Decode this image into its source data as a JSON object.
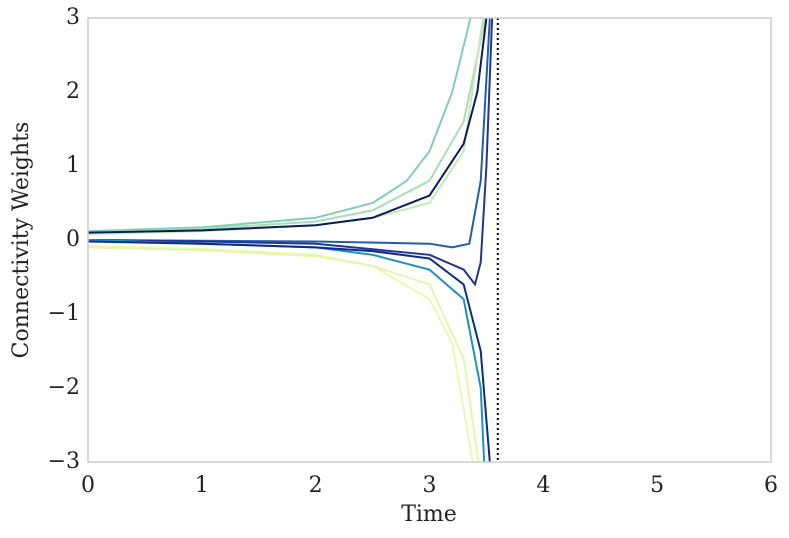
{
  "chart_data": {
    "type": "line",
    "xlabel": "Time",
    "ylabel": "Connectivity Weights",
    "xlim": [
      0,
      6
    ],
    "ylim": [
      -3,
      3
    ],
    "xticks": [
      0,
      1,
      2,
      3,
      4,
      5,
      6
    ],
    "yticks": [
      {
        "value": -3,
        "label": "−3"
      },
      {
        "value": -2,
        "label": "−2"
      },
      {
        "value": -1,
        "label": "−1"
      },
      0,
      1,
      2,
      3
    ],
    "vline": 3.6,
    "grid": false,
    "series": [
      {
        "color": "#7fcdbb",
        "x": [
          0,
          1,
          2,
          2.5,
          2.8,
          3.0,
          3.2,
          3.36
        ],
        "values": [
          0.12,
          0.17,
          0.3,
          0.5,
          0.8,
          1.2,
          2.0,
          3.0
        ]
      },
      {
        "color": "#a8ddb5",
        "x": [
          0,
          1,
          2,
          2.5,
          3.0,
          3.3,
          3.49
        ],
        "values": [
          0.1,
          0.15,
          0.25,
          0.4,
          0.8,
          1.6,
          3.0
        ]
      },
      {
        "color": "#c7e9b4",
        "x": [
          0,
          1,
          2,
          2.5,
          3.0,
          3.3,
          3.47
        ],
        "values": [
          0.08,
          0.12,
          0.2,
          0.3,
          0.5,
          1.2,
          3.0
        ]
      },
      {
        "color": "#081d58",
        "x": [
          0,
          1,
          2,
          2.5,
          3.0,
          3.3,
          3.42,
          3.5
        ],
        "values": [
          0.1,
          0.13,
          0.2,
          0.3,
          0.6,
          1.3,
          2.0,
          3.0
        ]
      },
      {
        "color": "#225ea8",
        "x": [
          0,
          1,
          2,
          3.0,
          3.2,
          3.35,
          3.45,
          3.53
        ],
        "values": [
          0,
          -0.01,
          -0.02,
          -0.05,
          -0.1,
          -0.05,
          0.8,
          3.0
        ]
      },
      {
        "color": "#253494",
        "x": [
          0,
          1,
          2,
          3.0,
          3.3,
          3.4,
          3.45,
          3.5,
          3.55
        ],
        "values": [
          0,
          -0.02,
          -0.05,
          -0.2,
          -0.4,
          -0.6,
          -0.3,
          1.0,
          3.0
        ]
      },
      {
        "color": "#1d91c0",
        "x": [
          0,
          1,
          2,
          2.5,
          3.0,
          3.3,
          3.45,
          3.48
        ],
        "values": [
          0,
          -0.05,
          -0.1,
          -0.2,
          -0.4,
          -0.8,
          -2.0,
          -3.0
        ]
      },
      {
        "color": "#0c2c84",
        "x": [
          0,
          1,
          2,
          2.5,
          3.0,
          3.3,
          3.45,
          3.53
        ],
        "values": [
          -0.02,
          -0.05,
          -0.1,
          -0.15,
          -0.25,
          -0.6,
          -1.5,
          -3.0
        ]
      },
      {
        "color": "#edf8b1",
        "x": [
          0,
          1,
          2,
          2.5,
          3.0,
          3.2,
          3.38
        ],
        "values": [
          -0.08,
          -0.12,
          -0.2,
          -0.35,
          -0.8,
          -1.4,
          -3.0
        ]
      },
      {
        "color": "#e5f5b0",
        "x": [
          0,
          1,
          2,
          2.5,
          3.0,
          3.3,
          3.43
        ],
        "values": [
          -0.1,
          -0.14,
          -0.22,
          -0.35,
          -0.6,
          -1.6,
          -3.0
        ]
      }
    ]
  }
}
